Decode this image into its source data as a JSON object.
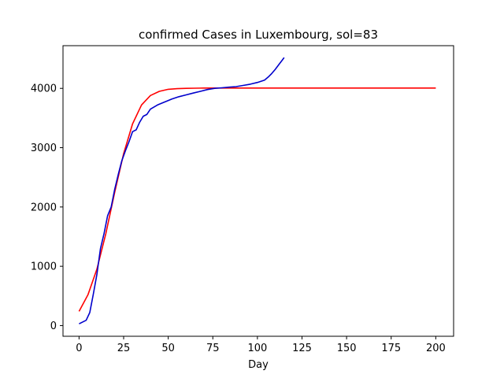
{
  "chart_data": {
    "type": "line",
    "title": "confirmed Cases in Luxembourg, sol=83",
    "xlabel": "Day",
    "ylabel": "",
    "xlim": [
      -9,
      210
    ],
    "ylim": [
      -180,
      4720
    ],
    "xticks": [
      0,
      25,
      50,
      75,
      100,
      125,
      150,
      175,
      200
    ],
    "yticks": [
      0,
      1000,
      2000,
      3000,
      4000
    ],
    "grid": false,
    "series": [
      {
        "color": "#ff0000",
        "x": [
          0,
          5,
          10,
          15,
          20,
          25,
          30,
          35,
          40,
          45,
          50,
          55,
          60,
          65,
          70,
          75,
          80,
          90,
          100,
          120,
          150,
          175,
          200
        ],
        "y": [
          240,
          520,
          950,
          1550,
          2250,
          2900,
          3400,
          3720,
          3880,
          3950,
          3985,
          3995,
          4000,
          4003,
          4005,
          4005,
          4005,
          4005,
          4005,
          4005,
          4005,
          4005,
          4005
        ]
      },
      {
        "color": "#0000cc",
        "x": [
          0,
          2,
          4,
          6,
          8,
          10,
          12,
          14,
          16,
          18,
          20,
          22,
          24,
          26,
          28,
          30,
          32,
          34,
          36,
          38,
          40,
          44,
          48,
          52,
          56,
          60,
          64,
          68,
          72,
          76,
          80,
          84,
          88,
          92,
          96,
          100,
          104,
          106,
          108,
          110,
          112,
          114,
          115
        ],
        "y": [
          30,
          60,
          90,
          220,
          530,
          860,
          1300,
          1550,
          1850,
          2000,
          2300,
          2550,
          2780,
          2950,
          3100,
          3270,
          3300,
          3430,
          3530,
          3560,
          3650,
          3720,
          3770,
          3820,
          3860,
          3890,
          3920,
          3950,
          3980,
          4000,
          4010,
          4020,
          4030,
          4050,
          4070,
          4100,
          4140,
          4190,
          4250,
          4320,
          4400,
          4480,
          4520
        ]
      }
    ]
  }
}
